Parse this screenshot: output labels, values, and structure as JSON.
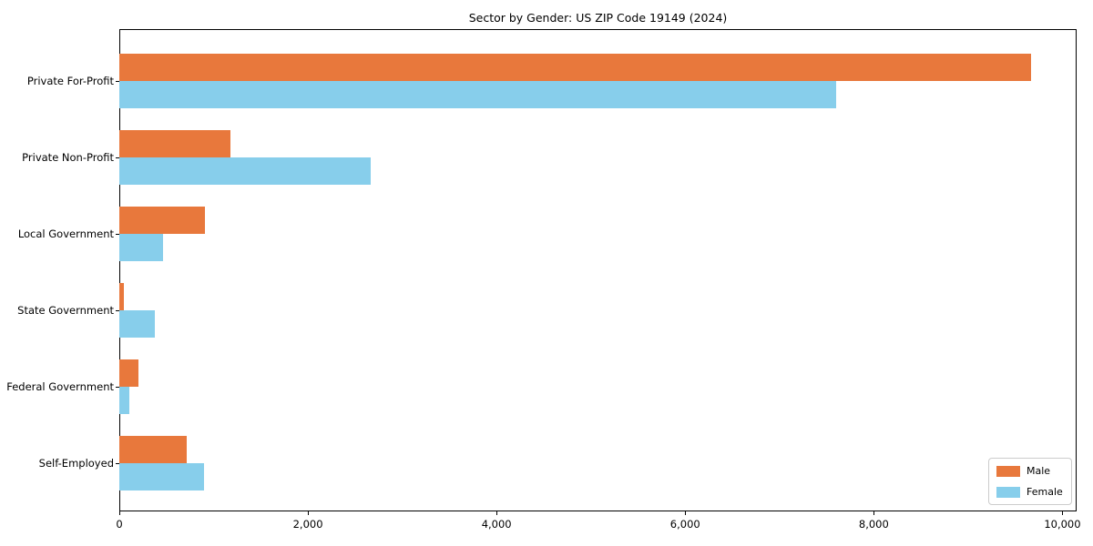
{
  "chart_data": {
    "type": "bar",
    "orientation": "horizontal",
    "title": "Sector by Gender: US ZIP Code 19149 (2024)",
    "categories": [
      "Private For-Profit",
      "Private Non-Profit",
      "Local Government",
      "State Government",
      "Federal Government",
      "Self-Employed"
    ],
    "series": [
      {
        "name": "Male",
        "color": "#e8783c",
        "values": [
          9670,
          1180,
          910,
          50,
          205,
          715
        ]
      },
      {
        "name": "Female",
        "color": "#87ceeb",
        "values": [
          7600,
          2670,
          460,
          380,
          105,
          900
        ]
      }
    ],
    "xlabel": "",
    "ylabel": "",
    "xlim": [
      0,
      10150
    ],
    "xticks": [
      0,
      2000,
      4000,
      6000,
      8000,
      10000
    ],
    "xtick_labels": [
      "0",
      "2,000",
      "4,000",
      "6,000",
      "8,000",
      "10,000"
    ],
    "grid": false,
    "legend_position": "lower right",
    "background_color": "#ffffff",
    "spine_color": "#000000"
  }
}
